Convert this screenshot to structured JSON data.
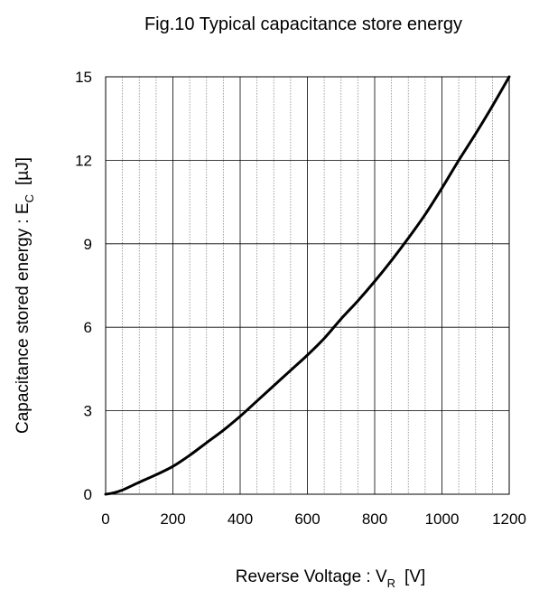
{
  "chart_data": {
    "type": "line",
    "title": "Fig.10 Typical capacitance store energy",
    "xlabel": {
      "main": "Reverse Voltage : V",
      "sub": "R",
      "unit": "[V]"
    },
    "ylabel": {
      "main": "Capacitance stored energy : E",
      "sub": "C",
      "unit": "[µJ]"
    },
    "xlim": [
      0,
      1200
    ],
    "ylim": [
      0,
      15
    ],
    "x_ticks": [
      0,
      200,
      400,
      600,
      800,
      1000,
      1200
    ],
    "y_ticks": [
      0,
      3,
      6,
      9,
      12,
      15
    ],
    "x_minor_step": 50,
    "grid": true,
    "series": [
      {
        "color": "#000000",
        "x": [
          0,
          20,
          50,
          100,
          150,
          200,
          250,
          300,
          350,
          400,
          450,
          500,
          550,
          600,
          650,
          700,
          750,
          800,
          850,
          900,
          950,
          1000,
          1050,
          1100,
          1150,
          1200
        ],
        "y": [
          0,
          0.04,
          0.15,
          0.43,
          0.7,
          1.0,
          1.4,
          1.85,
          2.3,
          2.8,
          3.35,
          3.9,
          4.45,
          5.0,
          5.6,
          6.3,
          6.95,
          7.65,
          8.4,
          9.2,
          10.05,
          11.0,
          12.0,
          12.95,
          13.95,
          15.0
        ]
      }
    ]
  }
}
